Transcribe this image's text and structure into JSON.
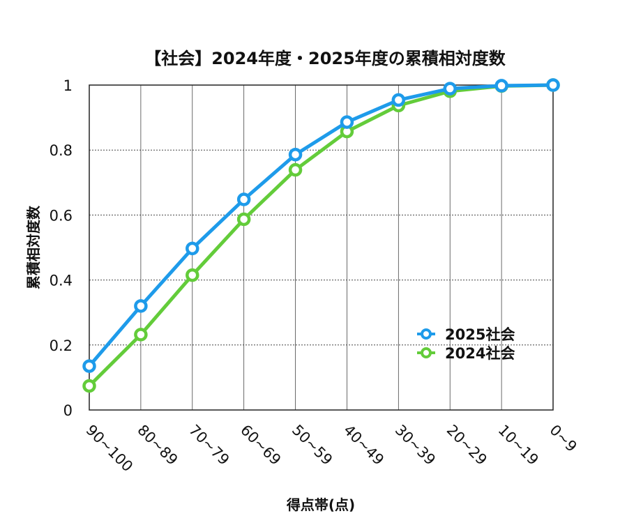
{
  "chart_data": {
    "type": "line",
    "title": "【社会】2024年度・2025年度の累積相対度数",
    "xlabel": "得点帯(点)",
    "ylabel": "累積相対度数",
    "categories": [
      "90~100",
      "80~89",
      "70~79",
      "60~69",
      "50~59",
      "40~49",
      "30~39",
      "20~29",
      "10~19",
      "0~9"
    ],
    "ylim": [
      0,
      1
    ],
    "yticks": [
      "0",
      "0.2",
      "0.4",
      "0.6",
      "0.8",
      "1"
    ],
    "grid": {
      "horizontal": "dotted",
      "vertical": "solid"
    },
    "legend_position": "bottom-right",
    "series": [
      {
        "name": "2025社会",
        "color": "#1e9bea",
        "values": [
          0.135,
          0.32,
          0.497,
          0.648,
          0.786,
          0.886,
          0.954,
          0.989,
          0.998,
          1.0
        ]
      },
      {
        "name": "2024社会",
        "color": "#63cc3a",
        "values": [
          0.074,
          0.232,
          0.415,
          0.587,
          0.739,
          0.857,
          0.937,
          0.981,
          0.997,
          1.0
        ]
      }
    ]
  }
}
